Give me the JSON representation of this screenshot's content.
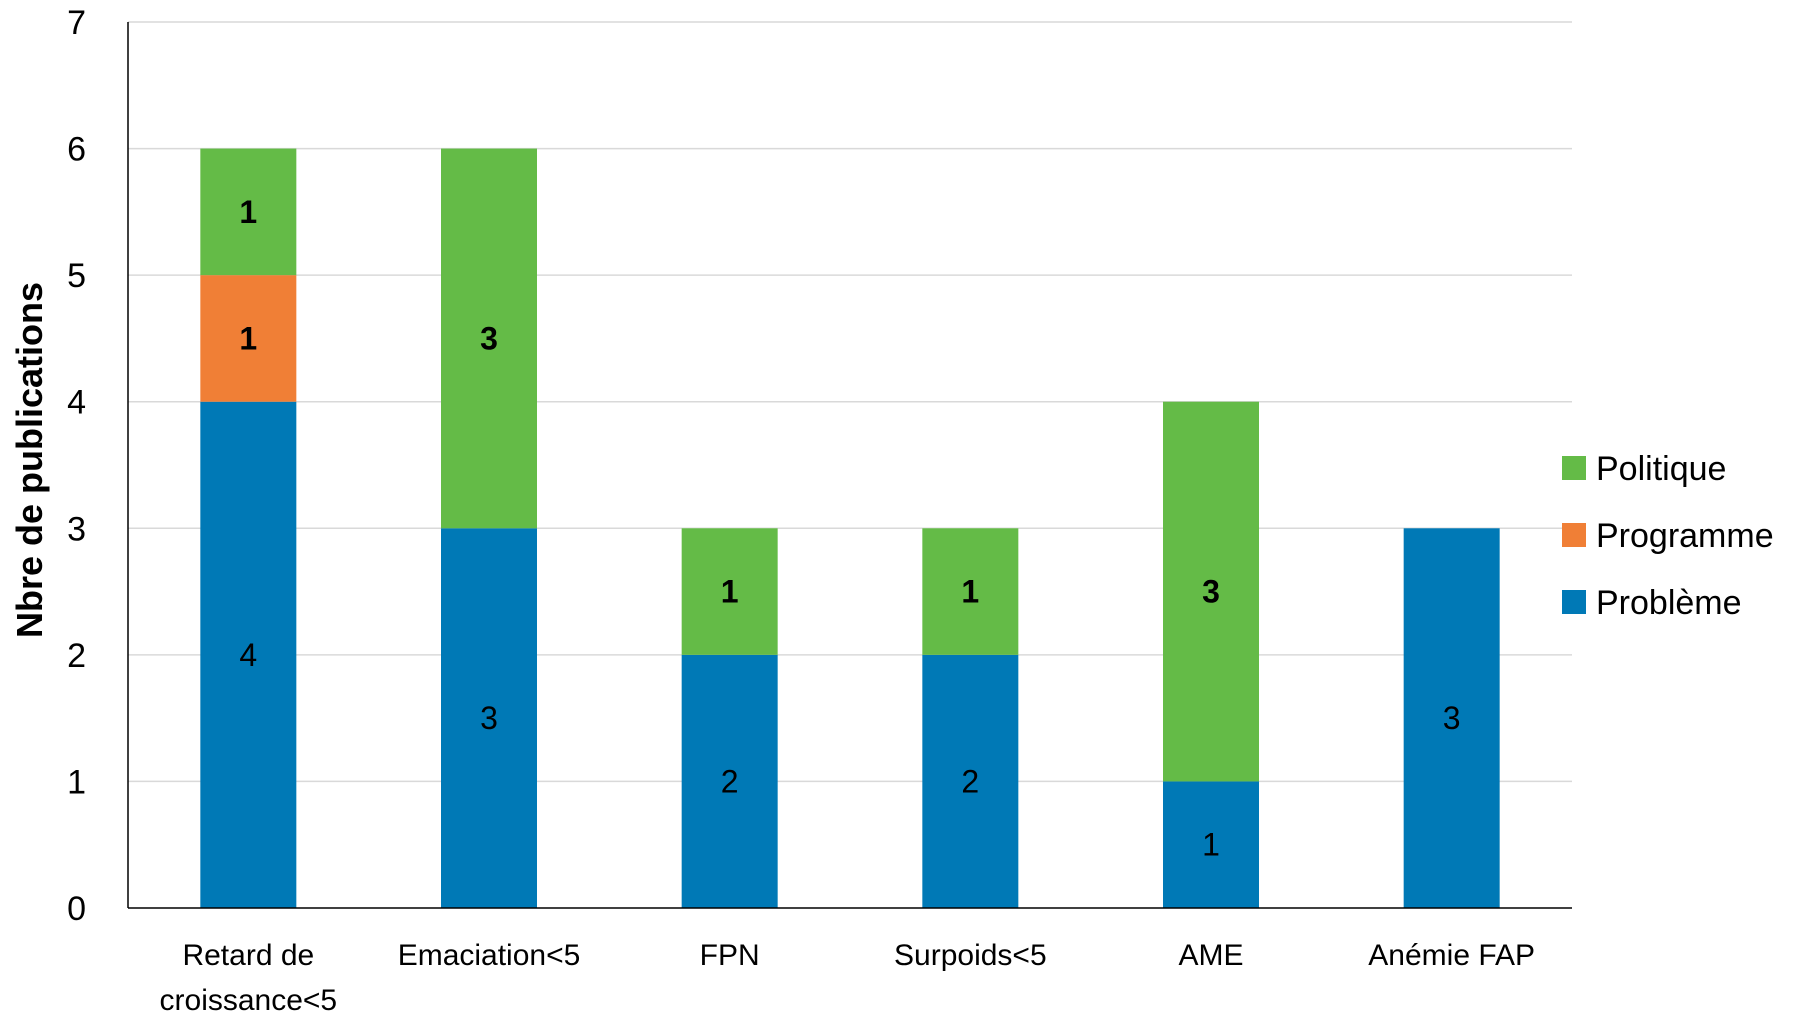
{
  "chart_data": {
    "type": "bar",
    "stacked": true,
    "title": "",
    "xlabel": "",
    "ylabel": "Nbre de  publications",
    "ylim": [
      0,
      7
    ],
    "yticks": [
      0,
      1,
      2,
      3,
      4,
      5,
      6,
      7
    ],
    "grid": true,
    "legend_position": "right",
    "categories": [
      [
        "Retard de",
        "croissance<5"
      ],
      [
        "Emaciation<5"
      ],
      [
        "FPN"
      ],
      [
        "Surpoids<5"
      ],
      [
        "AME"
      ],
      [
        "Anémie FAP"
      ]
    ],
    "series": [
      {
        "name": "Problème",
        "color": "#0079B6",
        "values": [
          4,
          3,
          2,
          2,
          1,
          3
        ],
        "label_bold": false
      },
      {
        "name": "Programme",
        "color": "#F07F36",
        "values": [
          1,
          0,
          0,
          0,
          0,
          0
        ],
        "label_bold": true
      },
      {
        "name": "Politique",
        "color": "#64BB47",
        "values": [
          1,
          3,
          1,
          1,
          3,
          0
        ],
        "label_bold": true
      }
    ],
    "data_labels": [
      [
        "4",
        "3",
        "2",
        "2",
        "1",
        "3"
      ],
      [
        "1",
        "",
        "",
        "",
        "",
        ""
      ],
      [
        "1",
        "3",
        "1",
        "1",
        "3",
        ""
      ]
    ],
    "legend_order": [
      "Politique",
      "Programme",
      "Problème"
    ]
  }
}
